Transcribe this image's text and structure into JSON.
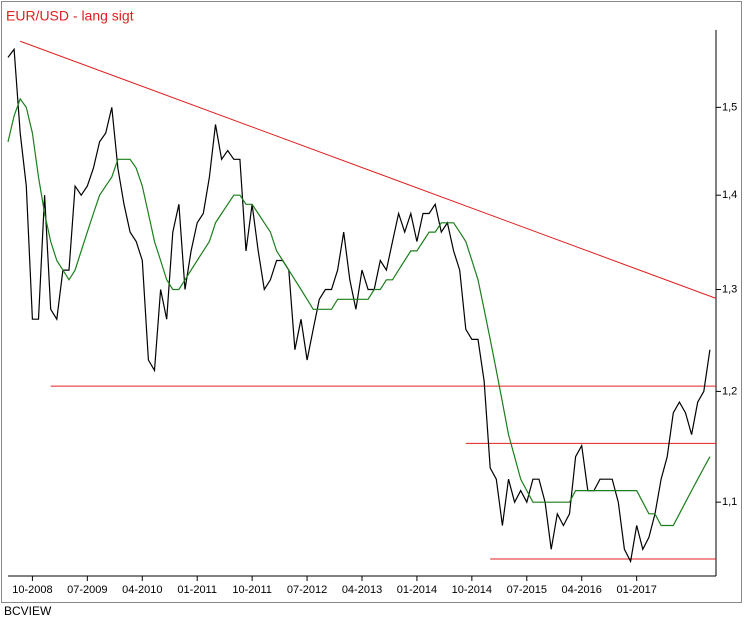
{
  "chart_data": {
    "type": "line",
    "title": "EUR/USD - lang sigt",
    "source": "BCVIEW",
    "log_scale": true,
    "x": [
      "2008-06",
      "2008-07",
      "2008-08",
      "2008-09",
      "2008-10",
      "2008-11",
      "2008-12",
      "2009-01",
      "2009-02",
      "2009-03",
      "2009-04",
      "2009-05",
      "2009-06",
      "2009-07",
      "2009-08",
      "2009-09",
      "2009-10",
      "2009-11",
      "2009-12",
      "2010-01",
      "2010-02",
      "2010-03",
      "2010-04",
      "2010-05",
      "2010-06",
      "2010-07",
      "2010-08",
      "2010-09",
      "2010-10",
      "2010-11",
      "2010-12",
      "2011-01",
      "2011-02",
      "2011-03",
      "2011-04",
      "2011-05",
      "2011-06",
      "2011-07",
      "2011-08",
      "2011-09",
      "2011-10",
      "2011-11",
      "2011-12",
      "2012-01",
      "2012-02",
      "2012-03",
      "2012-04",
      "2012-05",
      "2012-06",
      "2012-07",
      "2012-08",
      "2012-09",
      "2012-10",
      "2012-11",
      "2012-12",
      "2013-01",
      "2013-02",
      "2013-03",
      "2013-04",
      "2013-05",
      "2013-06",
      "2013-07",
      "2013-08",
      "2013-09",
      "2013-10",
      "2013-11",
      "2013-12",
      "2014-01",
      "2014-02",
      "2014-03",
      "2014-04",
      "2014-05",
      "2014-06",
      "2014-07",
      "2014-08",
      "2014-09",
      "2014-10",
      "2014-11",
      "2014-12",
      "2015-01",
      "2015-02",
      "2015-03",
      "2015-04",
      "2015-05",
      "2015-06",
      "2015-07",
      "2015-08",
      "2015-09",
      "2015-10",
      "2015-11",
      "2015-12",
      "2016-01",
      "2016-02",
      "2016-03",
      "2016-04",
      "2016-05",
      "2016-06",
      "2016-07",
      "2016-08",
      "2016-09",
      "2016-10",
      "2016-11",
      "2016-12",
      "2017-01",
      "2017-02",
      "2017-03",
      "2017-04",
      "2017-05",
      "2017-06",
      "2017-07",
      "2017-08",
      "2017-09",
      "2017-10",
      "2017-11",
      "2017-12",
      "2018-01"
    ],
    "series": [
      {
        "color": "#000000",
        "values": [
          1.56,
          1.57,
          1.47,
          1.41,
          1.27,
          1.27,
          1.4,
          1.28,
          1.27,
          1.32,
          1.32,
          1.41,
          1.4,
          1.41,
          1.43,
          1.46,
          1.47,
          1.5,
          1.43,
          1.39,
          1.36,
          1.35,
          1.33,
          1.23,
          1.22,
          1.3,
          1.27,
          1.36,
          1.39,
          1.3,
          1.34,
          1.37,
          1.38,
          1.42,
          1.48,
          1.44,
          1.45,
          1.44,
          1.44,
          1.34,
          1.39,
          1.34,
          1.3,
          1.31,
          1.33,
          1.33,
          1.32,
          1.24,
          1.27,
          1.23,
          1.26,
          1.29,
          1.3,
          1.3,
          1.32,
          1.36,
          1.31,
          1.28,
          1.32,
          1.3,
          1.3,
          1.33,
          1.32,
          1.35,
          1.38,
          1.36,
          1.38,
          1.35,
          1.38,
          1.38,
          1.39,
          1.36,
          1.37,
          1.34,
          1.32,
          1.26,
          1.25,
          1.25,
          1.21,
          1.13,
          1.12,
          1.08,
          1.12,
          1.1,
          1.11,
          1.1,
          1.12,
          1.12,
          1.1,
          1.06,
          1.09,
          1.08,
          1.09,
          1.14,
          1.15,
          1.11,
          1.11,
          1.12,
          1.12,
          1.12,
          1.1,
          1.06,
          1.05,
          1.08,
          1.06,
          1.07,
          1.09,
          1.12,
          1.14,
          1.18,
          1.19,
          1.18,
          1.16,
          1.19,
          1.2,
          1.24
        ]
      },
      {
        "color": "#1a7f1a",
        "values": [
          1.46,
          1.49,
          1.51,
          1.5,
          1.47,
          1.42,
          1.38,
          1.35,
          1.33,
          1.32,
          1.31,
          1.32,
          1.34,
          1.36,
          1.38,
          1.4,
          1.41,
          1.42,
          1.44,
          1.44,
          1.44,
          1.43,
          1.41,
          1.38,
          1.35,
          1.33,
          1.31,
          1.3,
          1.3,
          1.31,
          1.32,
          1.33,
          1.34,
          1.35,
          1.37,
          1.38,
          1.39,
          1.4,
          1.4,
          1.39,
          1.39,
          1.38,
          1.37,
          1.36,
          1.34,
          1.33,
          1.32,
          1.31,
          1.3,
          1.29,
          1.28,
          1.28,
          1.28,
          1.28,
          1.29,
          1.29,
          1.29,
          1.29,
          1.29,
          1.29,
          1.3,
          1.3,
          1.31,
          1.31,
          1.32,
          1.33,
          1.34,
          1.34,
          1.35,
          1.36,
          1.36,
          1.37,
          1.37,
          1.37,
          1.36,
          1.35,
          1.33,
          1.31,
          1.28,
          1.25,
          1.22,
          1.19,
          1.16,
          1.14,
          1.12,
          1.11,
          1.1,
          1.1,
          1.1,
          1.1,
          1.1,
          1.1,
          1.1,
          1.11,
          1.11,
          1.11,
          1.11,
          1.11,
          1.11,
          1.11,
          1.11,
          1.11,
          1.11,
          1.11,
          1.1,
          1.09,
          1.09,
          1.08,
          1.08,
          1.08,
          1.09,
          1.1,
          1.11,
          1.12,
          1.13,
          1.14
        ]
      }
    ],
    "lines": [
      {
        "color": "#e02020",
        "x": [
          "2008-08",
          "2018-02"
        ],
        "y": [
          1.58,
          1.291
        ]
      },
      {
        "color": "#e02020",
        "x": [
          "2009-01",
          "2018-02"
        ],
        "y": [
          1.205,
          1.205
        ]
      },
      {
        "color": "#e02020",
        "x": [
          "2014-09",
          "2018-02"
        ],
        "y": [
          1.152,
          1.152
        ]
      },
      {
        "color": "#e02020",
        "x": [
          "2015-01",
          "2018-02"
        ],
        "y": [
          1.052,
          1.052
        ]
      }
    ],
    "xlim": [
      "2008-06",
      "2018-02"
    ],
    "xticks": [
      {
        "value": "2008-10",
        "label": "10-2008"
      },
      {
        "value": "2009-07",
        "label": "07-2009"
      },
      {
        "value": "2010-04",
        "label": "04-2010"
      },
      {
        "value": "2011-01",
        "label": "01-2011"
      },
      {
        "value": "2011-10",
        "label": "10-2011"
      },
      {
        "value": "2012-07",
        "label": "07-2012"
      },
      {
        "value": "2013-04",
        "label": "04-2013"
      },
      {
        "value": "2014-01",
        "label": "01-2014"
      },
      {
        "value": "2014-10",
        "label": "10-2014"
      },
      {
        "value": "2015-07",
        "label": "07-2015"
      },
      {
        "value": "2016-04",
        "label": "04-2016"
      },
      {
        "value": "2017-01",
        "label": "01-2017"
      }
    ],
    "ylim": [
      1.038,
      1.594
    ],
    "yticks": [
      {
        "value": 1.1,
        "label": "1,1"
      },
      {
        "value": 1.2,
        "label": "1,2"
      },
      {
        "value": 1.3,
        "label": "1,3"
      },
      {
        "value": 1.4,
        "label": "1,4"
      },
      {
        "value": 1.5,
        "label": "1,5"
      }
    ]
  }
}
